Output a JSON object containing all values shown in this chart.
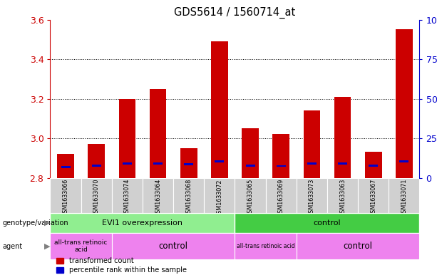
{
  "title": "GDS5614 / 1560714_at",
  "samples": [
    "GSM1633066",
    "GSM1633070",
    "GSM1633074",
    "GSM1633064",
    "GSM1633068",
    "GSM1633072",
    "GSM1633065",
    "GSM1633069",
    "GSM1633073",
    "GSM1633063",
    "GSM1633067",
    "GSM1633071"
  ],
  "red_values": [
    2.92,
    2.97,
    3.2,
    3.25,
    2.95,
    3.49,
    3.05,
    3.02,
    3.14,
    3.21,
    2.93,
    3.55
  ],
  "blue_values": [
    2.855,
    2.862,
    2.872,
    2.872,
    2.868,
    2.882,
    2.862,
    2.86,
    2.872,
    2.872,
    2.862,
    2.882
  ],
  "y_min": 2.8,
  "y_max": 3.6,
  "y_ticks": [
    2.8,
    3.0,
    3.2,
    3.4,
    3.6
  ],
  "y2_ticks_labels": [
    "0",
    "25",
    "50",
    "75",
    "100%"
  ],
  "y2_tick_positions": [
    2.8,
    3.0,
    3.2,
    3.4,
    3.6
  ],
  "red_color": "#cc0000",
  "blue_color": "#0000cc",
  "bar_width": 0.55,
  "plot_bg": "#ffffff",
  "group1_label": "EVI1 overexpression",
  "group2_label": "control",
  "agent1a_label": "all-trans retinoic\nacid",
  "agent1b_label": "control",
  "agent2a_label": "all-trans retinoic acid",
  "agent2b_label": "control",
  "green_light": "#90ee90",
  "green_dark": "#44cc44",
  "pink_color": "#ee82ee",
  "legend_red": "transformed count",
  "legend_blue": "percentile rank within the sample",
  "tick_color_left": "#cc0000",
  "tick_color_right": "#0000cc",
  "gray_bg": "#d0d0d0",
  "genotype_label": "genotype/variation",
  "agent_label": "agent"
}
